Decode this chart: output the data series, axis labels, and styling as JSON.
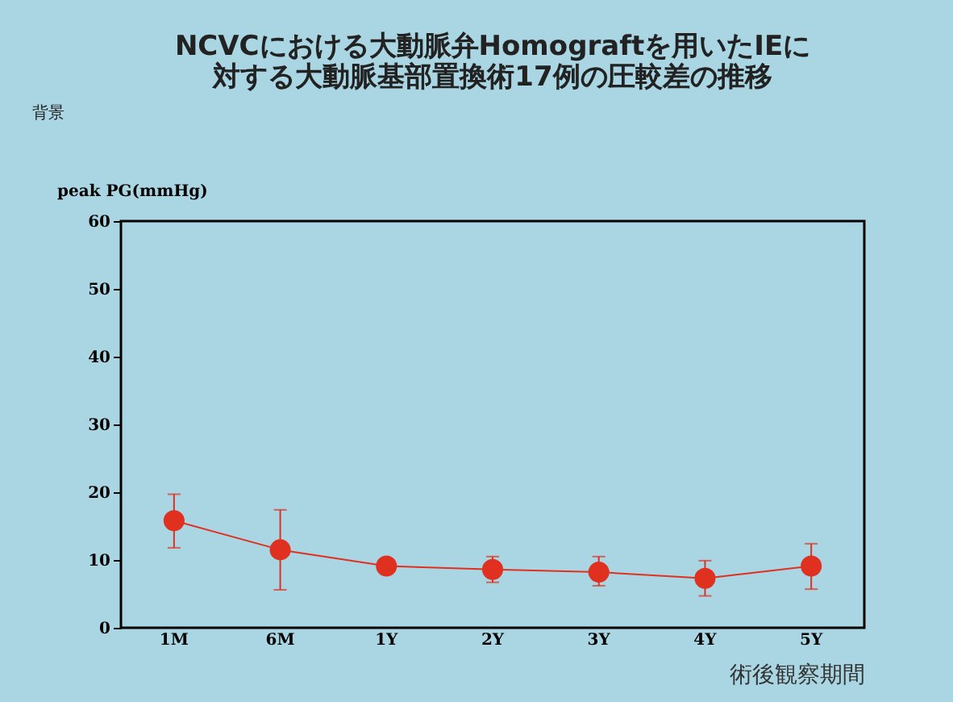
{
  "chart_data": {
    "type": "line",
    "title": [
      "NCVCにおける大動脈弁Homograftを用いたIEに",
      "対する大動脈基部置換術17例の圧較差の推移"
    ],
    "annotations": [
      "背景"
    ],
    "xlabel": "術後観察期間",
    "ylabel": "peak PG(mmHg)",
    "categories": [
      "1M",
      "6M",
      "1Y",
      "2Y",
      "3Y",
      "4Y",
      "5Y"
    ],
    "series": [
      {
        "color": "#e03020",
        "values": [
          15.8,
          11.5,
          9.1,
          8.6,
          8.2,
          7.3,
          9.1
        ],
        "errors": [
          [
            11.8,
            19.7
          ],
          [
            5.6,
            17.4
          ],
          null,
          [
            6.7,
            10.5
          ],
          [
            6.2,
            10.5
          ],
          [
            4.7,
            9.9
          ],
          [
            5.7,
            12.4
          ]
        ]
      }
    ],
    "ylim": [
      0,
      60
    ],
    "yticks": [
      0,
      10,
      20,
      30,
      40,
      50,
      60
    ],
    "grid": false,
    "marker": "circle",
    "line_style": "solid"
  }
}
